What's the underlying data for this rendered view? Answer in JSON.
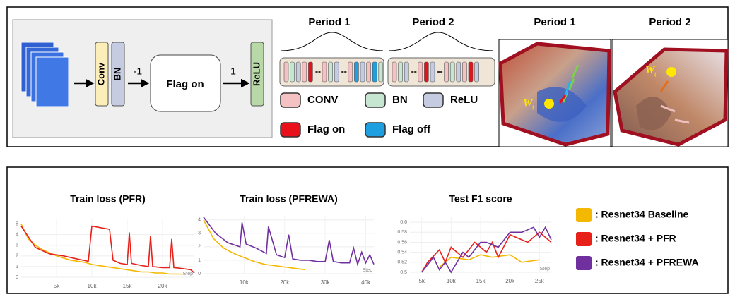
{
  "diagram": {
    "blocks": [
      "Conv",
      "BN",
      "Flag on",
      "ReLU"
    ],
    "edge_labels": [
      "-1",
      "1"
    ],
    "period_titles": [
      "Period 1",
      "Period 2"
    ],
    "block_legend": [
      {
        "label": "CONV",
        "color": "#f4c2c2"
      },
      {
        "label": "BN",
        "color": "#c6e6d2"
      },
      {
        "label": "ReLU",
        "color": "#c5cbe0"
      },
      {
        "label": "Flag on",
        "color": "#e8101a"
      },
      {
        "label": "Flag off",
        "color": "#1ea0e0"
      }
    ],
    "landscape_titles": [
      "Period 1",
      "Period 2"
    ],
    "weight_symbol": "W",
    "weight_subscript": "t"
  },
  "charts": [
    {
      "type": "line",
      "title": "Train loss  (PFR)",
      "x_label": "Step",
      "xlim": [
        0,
        24500
      ],
      "ylim": [
        0,
        5.5
      ],
      "xticks": [
        {
          "value": 5000,
          "label": "5k"
        },
        {
          "value": 10000,
          "label": "10k"
        },
        {
          "value": 15000,
          "label": "15k"
        },
        {
          "value": 20000,
          "label": "20k"
        }
      ],
      "yticks": [
        0,
        1,
        2,
        3,
        4,
        5
      ],
      "grid": true,
      "series": [
        {
          "color": "#f5b800",
          "x": [
            0,
            1000,
            2000,
            3000,
            4000,
            5000,
            6000,
            7000,
            8000,
            9000,
            10000,
            11000,
            12000,
            13000,
            14000,
            15000,
            16000,
            17000,
            18000,
            19000,
            20000,
            21000,
            22000,
            23000
          ],
          "values": [
            5,
            3.6,
            3.0,
            2.6,
            2.3,
            2.0,
            1.8,
            1.6,
            1.5,
            1.4,
            1.2,
            1.1,
            1.0,
            0.9,
            0.8,
            0.7,
            0.6,
            0.5,
            0.5,
            0.4,
            0.4,
            0.3,
            0.3,
            0.3
          ]
        },
        {
          "color": "#e8201a",
          "x": [
            0,
            2000,
            4000,
            6000,
            8000,
            9500,
            10000,
            12500,
            13000,
            14000,
            15000,
            15300,
            15600,
            17000,
            18000,
            18300,
            18600,
            20000,
            21000,
            21300,
            21600,
            23000,
            24000,
            24500
          ],
          "values": [
            4.8,
            2.8,
            2.2,
            2.0,
            1.7,
            1.5,
            4.8,
            4.5,
            1.6,
            1.3,
            1.2,
            4.2,
            1.3,
            1.1,
            1.0,
            3.9,
            1.0,
            0.9,
            0.9,
            3.6,
            0.9,
            0.8,
            0.7,
            0.4
          ]
        }
      ]
    },
    {
      "type": "line",
      "title": "Train loss  (PFREWA)",
      "x_label": "Step",
      "xlim": [
        0,
        42000
      ],
      "ylim": [
        0,
        4.3
      ],
      "xticks": [
        {
          "value": 10000,
          "label": "10k"
        },
        {
          "value": 20000,
          "label": "20k"
        },
        {
          "value": 30000,
          "label": "30k"
        },
        {
          "value": 40000,
          "label": "40k"
        }
      ],
      "yticks": [
        0,
        1,
        2,
        3,
        4
      ],
      "grid": true,
      "series": [
        {
          "color": "#f5b800",
          "x": [
            0,
            2500,
            5000,
            7500,
            10000,
            12500,
            15000,
            17500,
            20000,
            22500,
            25000
          ],
          "values": [
            4.0,
            2.6,
            1.9,
            1.5,
            1.2,
            0.9,
            0.7,
            0.6,
            0.5,
            0.4,
            0.3
          ]
        },
        {
          "color": "#7030a0",
          "x": [
            0,
            3000,
            6000,
            9000,
            9500,
            10500,
            13000,
            15500,
            16000,
            18000,
            20000,
            21000,
            22000,
            24000,
            26000,
            28000,
            30000,
            31000,
            32000,
            34000,
            36000,
            37000,
            38000,
            39000,
            40000,
            41000,
            42000
          ],
          "values": [
            4.2,
            3.0,
            2.3,
            2.0,
            3.8,
            2.2,
            1.9,
            1.5,
            3.5,
            1.4,
            1.2,
            2.9,
            1.1,
            1.0,
            1.0,
            0.9,
            0.9,
            2.5,
            0.9,
            0.8,
            0.8,
            1.9,
            0.7,
            1.6,
            0.8,
            1.4,
            0.7
          ]
        }
      ]
    },
    {
      "type": "line",
      "title": "Test F1 score",
      "x_label": "Step",
      "xlim": [
        3000,
        27000
      ],
      "ylim": [
        0.5,
        0.61
      ],
      "xticks": [
        {
          "value": 5000,
          "label": "5k"
        },
        {
          "value": 10000,
          "label": "10k"
        },
        {
          "value": 15000,
          "label": "15k"
        },
        {
          "value": 20000,
          "label": "20k"
        },
        {
          "value": 25000,
          "label": "25k"
        }
      ],
      "yticks": [
        0.5,
        0.52,
        0.54,
        0.56,
        0.58,
        0.6
      ],
      "grid": true,
      "series": [
        {
          "color": "#f5b800",
          "x": [
            8000,
            10000,
            13000,
            15000,
            17000,
            20000,
            22000,
            25000
          ],
          "values": [
            0.51,
            0.53,
            0.525,
            0.535,
            0.53,
            0.535,
            0.52,
            0.525
          ]
        },
        {
          "color": "#e8201a",
          "x": [
            5000,
            6000,
            8000,
            9000,
            10000,
            12000,
            14000,
            16000,
            17000,
            18000,
            20000,
            21000,
            23000,
            25000,
            27000
          ],
          "values": [
            0.5,
            0.52,
            0.545,
            0.52,
            0.55,
            0.53,
            0.56,
            0.54,
            0.56,
            0.53,
            0.575,
            0.57,
            0.56,
            0.58,
            0.56
          ]
        },
        {
          "color": "#7030a0",
          "x": [
            5000,
            7000,
            8000,
            9000,
            10000,
            12000,
            13000,
            15000,
            16000,
            18000,
            20000,
            22000,
            24000,
            25000,
            26000,
            27000
          ],
          "values": [
            0.5,
            0.53,
            0.505,
            0.52,
            0.5,
            0.54,
            0.53,
            0.56,
            0.56,
            0.55,
            0.58,
            0.58,
            0.59,
            0.57,
            0.59,
            0.565
          ]
        }
      ]
    }
  ],
  "legend": [
    {
      "label": ": Resnet34  Baseline",
      "color": "#f5b800"
    },
    {
      "label": ": Resnet34  + PFR",
      "color": "#e8201a"
    },
    {
      "label": ": Resnet34  + PFREWA",
      "color": "#7030a0"
    }
  ]
}
